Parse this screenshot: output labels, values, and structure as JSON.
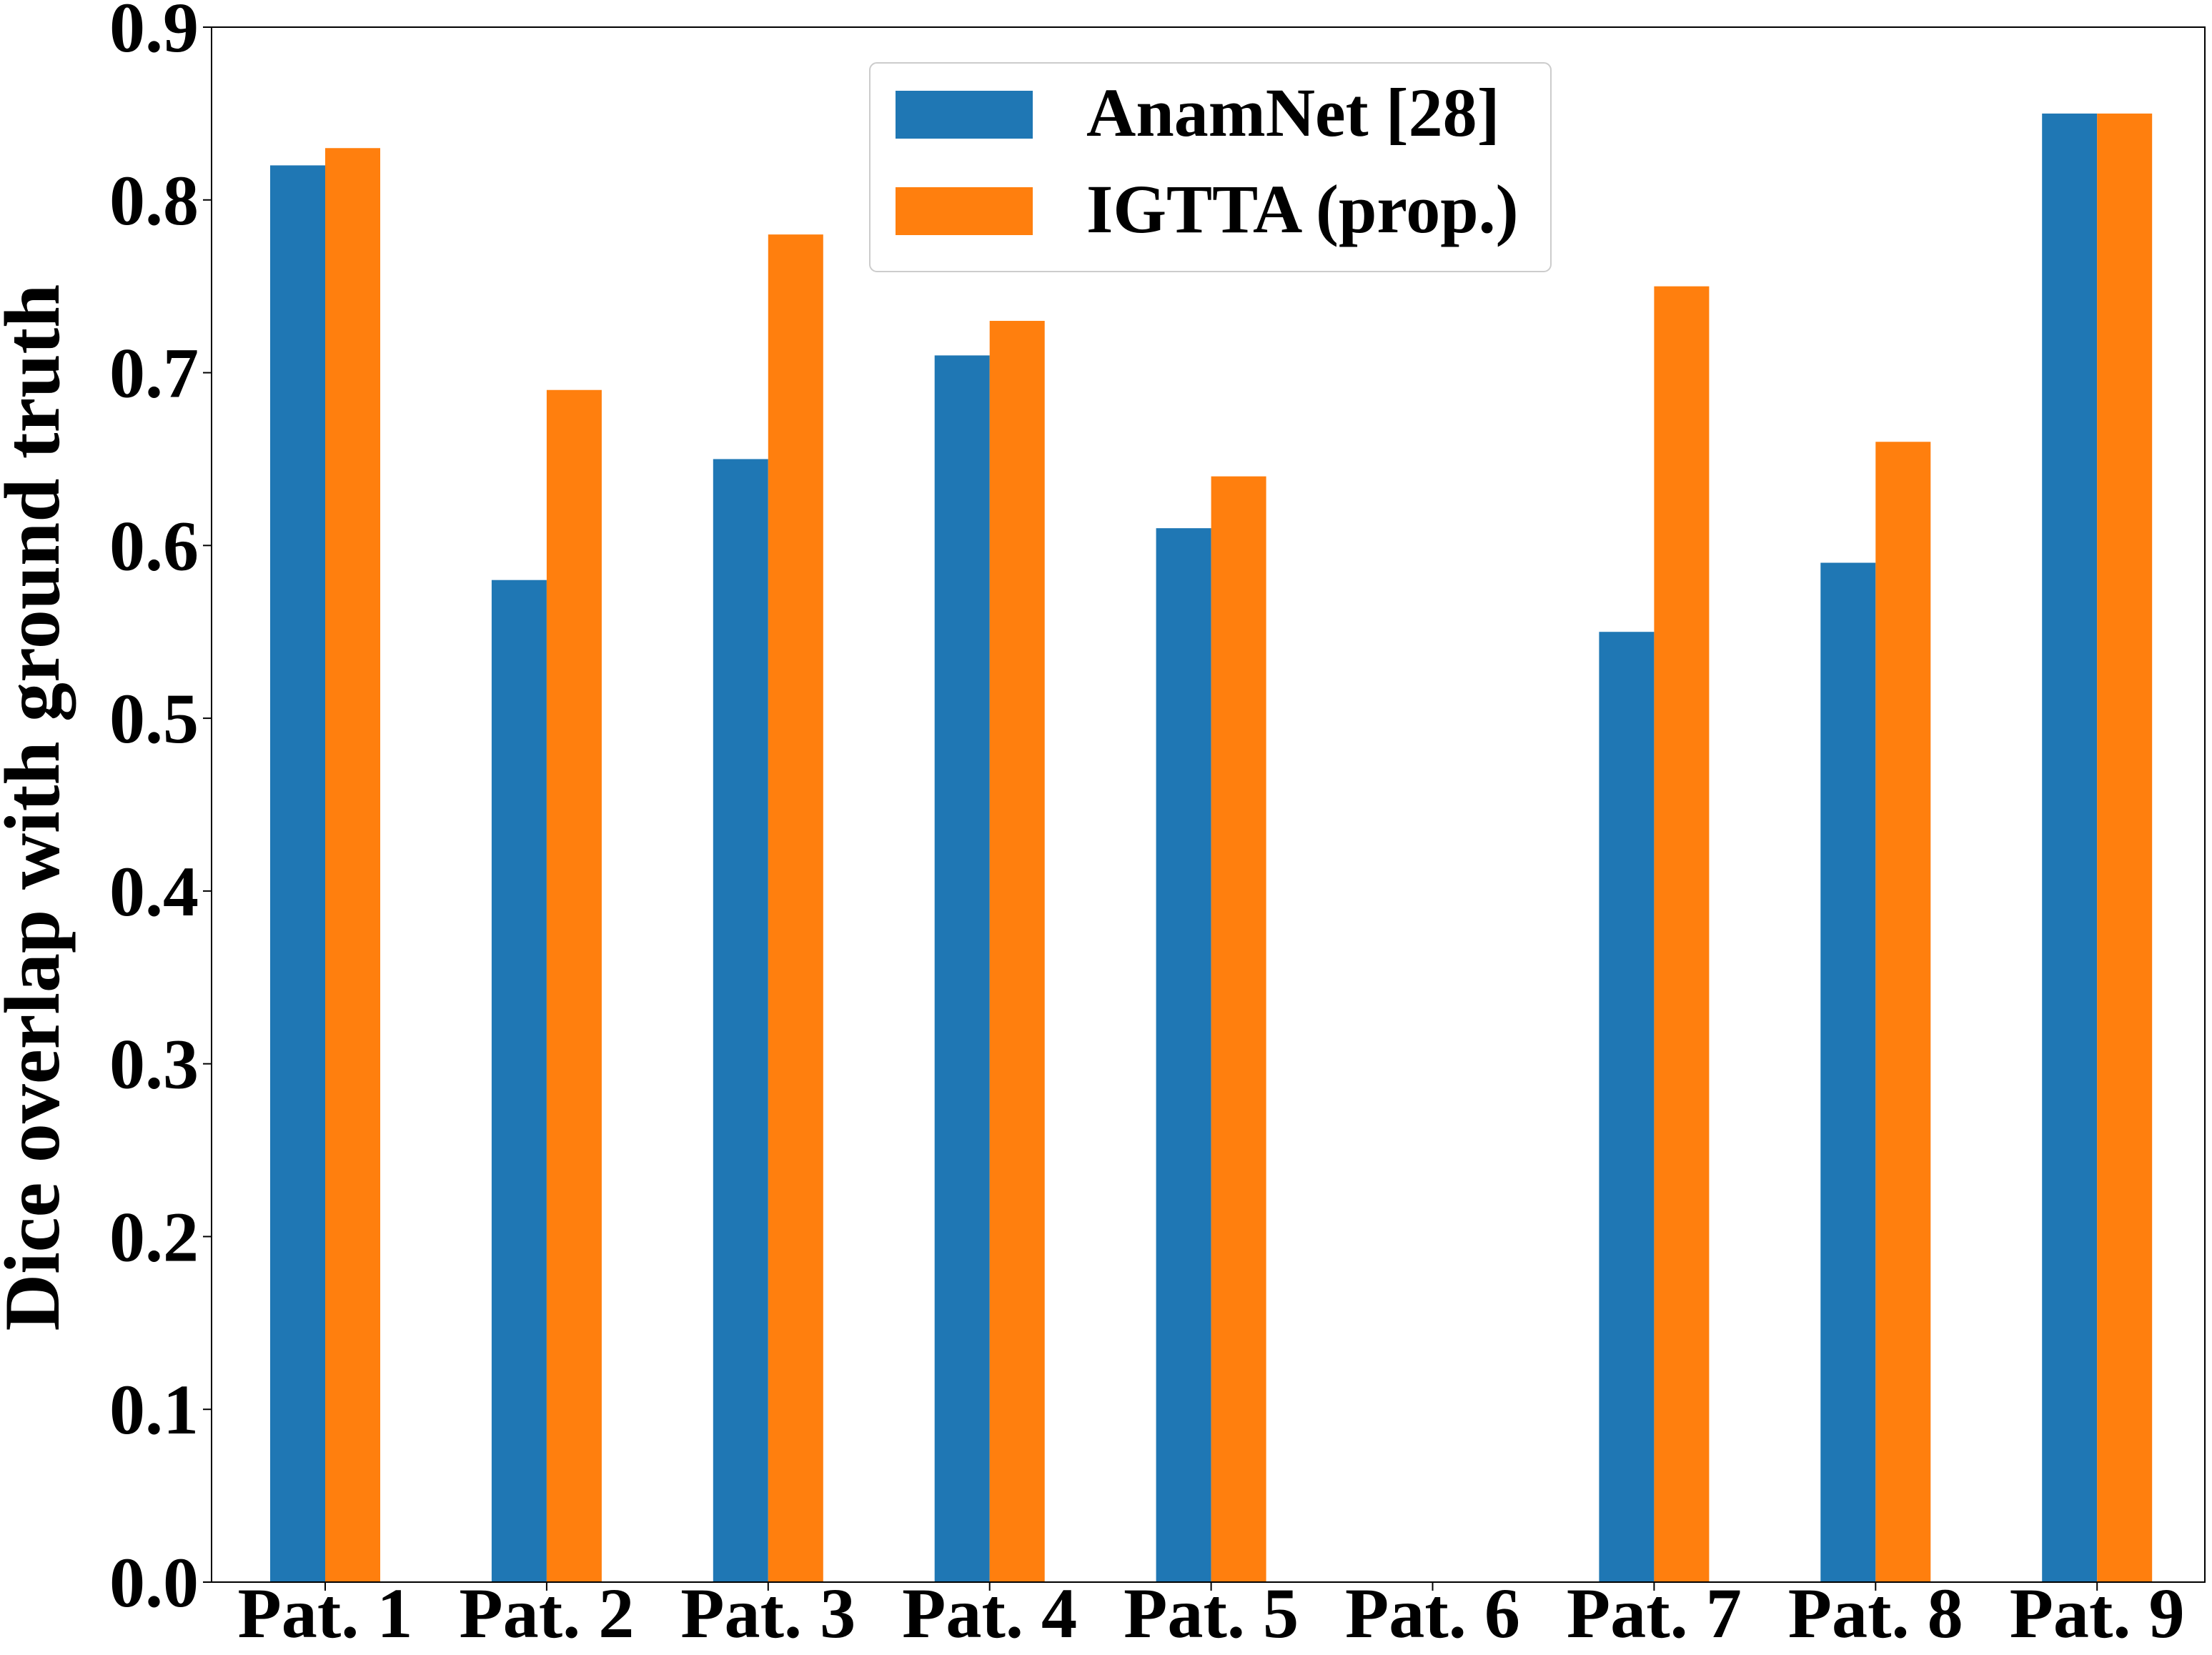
{
  "chart_data": {
    "type": "bar",
    "title": "",
    "xlabel": "",
    "ylabel": "Dice overlap with ground truth",
    "ylim": [
      0,
      0.9
    ],
    "yticks": [
      0.0,
      0.1,
      0.2,
      0.3,
      0.4,
      0.5,
      0.6,
      0.7,
      0.8,
      0.9
    ],
    "ytick_labels": [
      "0.0",
      "0.1",
      "0.2",
      "0.3",
      "0.4",
      "0.5",
      "0.6",
      "0.7",
      "0.8",
      "0.9"
    ],
    "categories": [
      "Pat. 1",
      "Pat. 2",
      "Pat. 3",
      "Pat. 4",
      "Pat. 5",
      "Pat. 6",
      "Pat. 7",
      "Pat. 8",
      "Pat. 9"
    ],
    "series": [
      {
        "name": "AnamNet [28]",
        "color": "#1f77b4",
        "values": [
          0.82,
          0.58,
          0.65,
          0.71,
          0.61,
          0.0,
          0.55,
          0.59,
          0.85
        ]
      },
      {
        "name": "IGTTA (prop.)",
        "color": "#ff7f0e",
        "values": [
          0.83,
          0.69,
          0.78,
          0.73,
          0.64,
          0.0,
          0.75,
          0.66,
          0.85
        ]
      }
    ],
    "grid": false,
    "legend_position": "upper center"
  }
}
